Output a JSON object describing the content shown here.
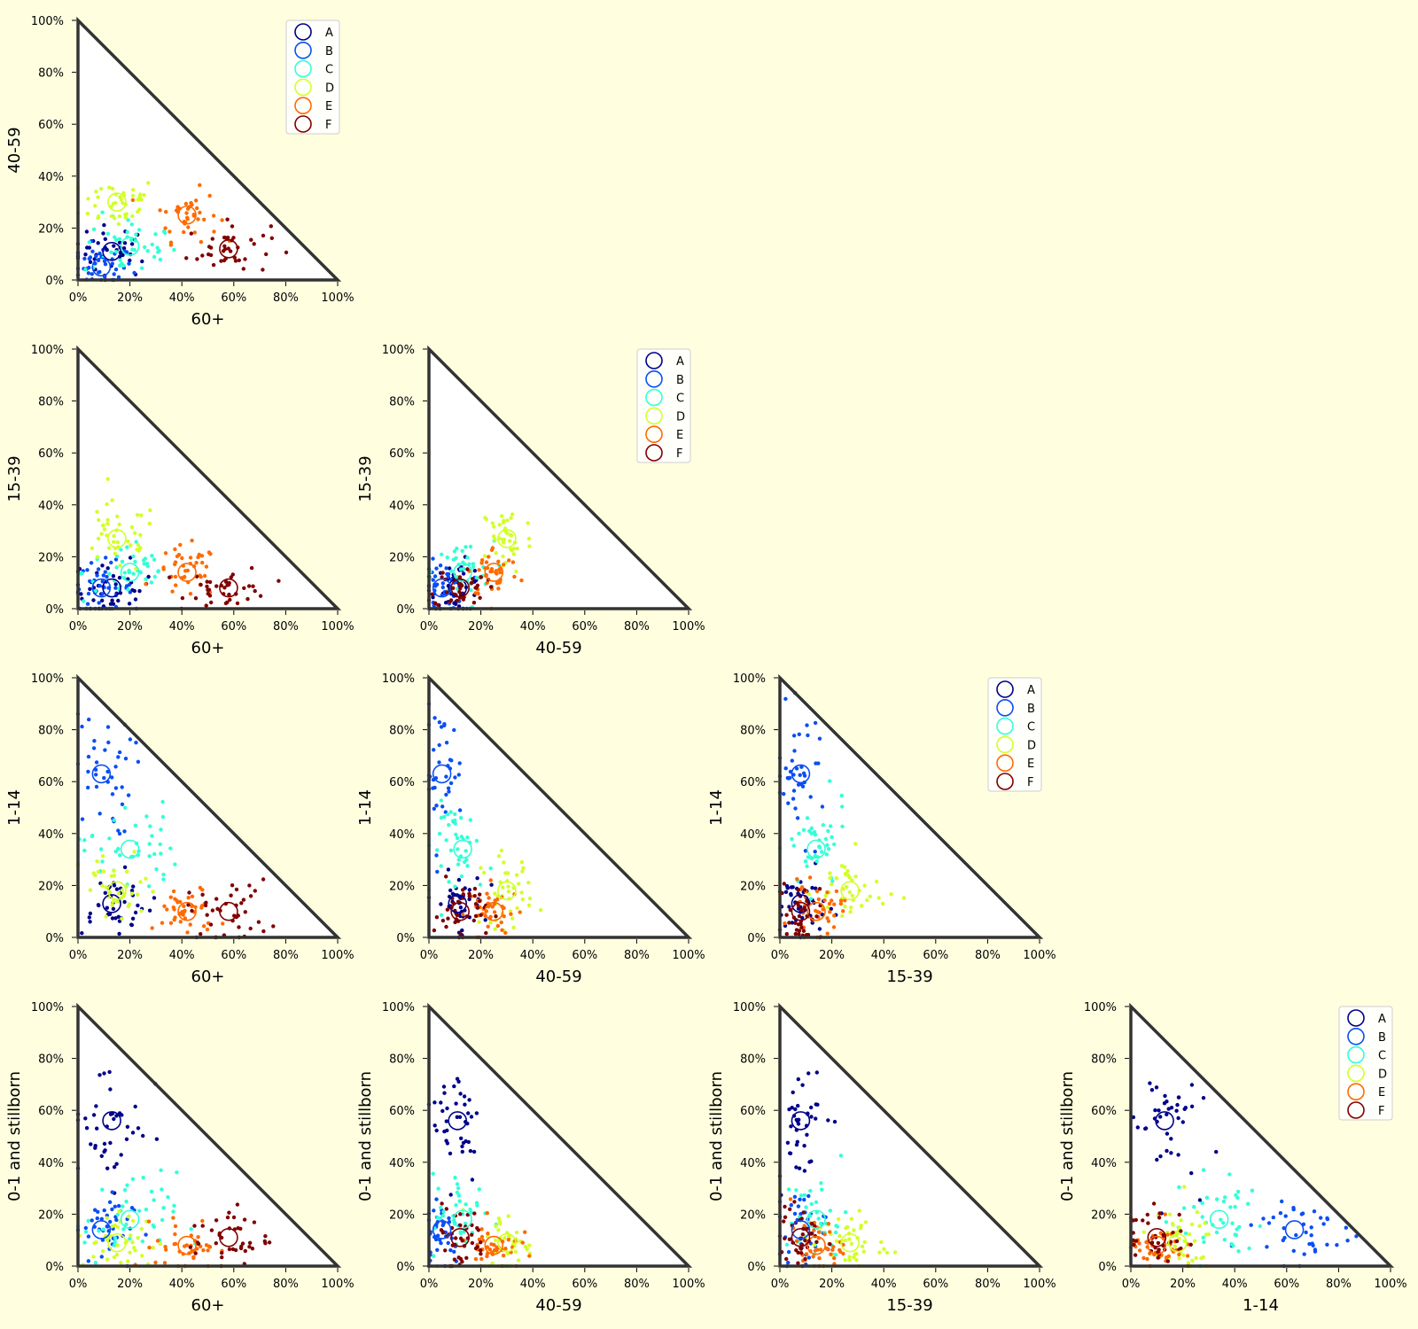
{
  "page": {
    "background": "#ffffe0"
  },
  "chart_data": {
    "type": "scatter",
    "description_grid": "lower-triangular pair plot of age-group shares; each panel is a triangle (x + y <= 100%)",
    "axis_range": [
      0,
      100
    ],
    "ticks": [
      "0%",
      "20%",
      "40%",
      "60%",
      "80%",
      "100%"
    ],
    "colors": {
      "A": "#00008b",
      "B": "#0a4ef5",
      "C": "#33ffd6",
      "D": "#d2ff28",
      "E": "#ff6a00",
      "F": "#800000",
      "frame": "#333333",
      "plot_bg": "#ffffff"
    },
    "legend": {
      "labels": [
        "A",
        "B",
        "C",
        "D",
        "E",
        "F"
      ],
      "placement": "top-right of first panel in each row"
    },
    "variables": [
      "60+",
      "40-59",
      "15-39",
      "1-14",
      "0-1 and stillborn"
    ],
    "centroids": {
      "60+": {
        "A": 13,
        "B": 9,
        "C": 20,
        "D": 15,
        "E": 42,
        "F": 58
      },
      "40-59": {
        "A": 11,
        "B": 5,
        "C": 13,
        "D": 30,
        "E": 25,
        "F": 12
      },
      "15-39": {
        "A": 8,
        "B": 8,
        "C": 14,
        "D": 27,
        "E": 14,
        "F": 8
      },
      "1-14": {
        "A": 13,
        "B": 63,
        "C": 34,
        "D": 18,
        "E": 10,
        "F": 10
      },
      "0-1 and stillborn": {
        "A": 56,
        "B": 14,
        "C": 18,
        "D": 9,
        "E": 8,
        "F": 11
      }
    },
    "spread": {
      "60+": {
        "A": 8,
        "B": 6,
        "C": 9,
        "D": 8,
        "E": 6,
        "F": 8
      },
      "40-59": {
        "A": 5,
        "B": 4,
        "C": 6,
        "D": 5,
        "E": 5,
        "F": 5
      },
      "15-39": {
        "A": 5,
        "B": 5,
        "C": 6,
        "D": 7,
        "E": 5,
        "F": 4
      },
      "1-14": {
        "A": 6,
        "B": 12,
        "C": 9,
        "D": 7,
        "E": 5,
        "F": 6
      },
      "0-1 and stillborn": {
        "A": 12,
        "B": 7,
        "C": 9,
        "D": 6,
        "E": 5,
        "F": 6
      }
    },
    "panels": [
      {
        "id": "p-40-59-vs-60plus",
        "xlabel": "60+",
        "ylabel": "40-59",
        "legend": true
      },
      {
        "id": "p-15-39-vs-60plus",
        "xlabel": "60+",
        "ylabel": "15-39",
        "legend": false
      },
      {
        "id": "p-15-39-vs-40-59",
        "xlabel": "40-59",
        "ylabel": "15-39",
        "legend": true
      },
      {
        "id": "p-1-14-vs-60plus",
        "xlabel": "60+",
        "ylabel": "1-14",
        "legend": false
      },
      {
        "id": "p-1-14-vs-40-59",
        "xlabel": "40-59",
        "ylabel": "1-14",
        "legend": false
      },
      {
        "id": "p-1-14-vs-15-39",
        "xlabel": "15-39",
        "ylabel": "1-14",
        "legend": true
      },
      {
        "id": "p-0-1-vs-60plus",
        "xlabel": "60+",
        "ylabel": "0-1 and stillborn",
        "legend": false
      },
      {
        "id": "p-0-1-vs-40-59",
        "xlabel": "40-59",
        "ylabel": "0-1 and stillborn",
        "legend": false
      },
      {
        "id": "p-0-1-vs-15-39",
        "xlabel": "15-39",
        "ylabel": "0-1 and stillborn",
        "legend": false
      },
      {
        "id": "p-0-1-vs-1-14",
        "xlabel": "1-14",
        "ylabel": "0-1 and stillborn",
        "legend": true
      }
    ],
    "points_per_cluster": 40,
    "grid": false
  }
}
